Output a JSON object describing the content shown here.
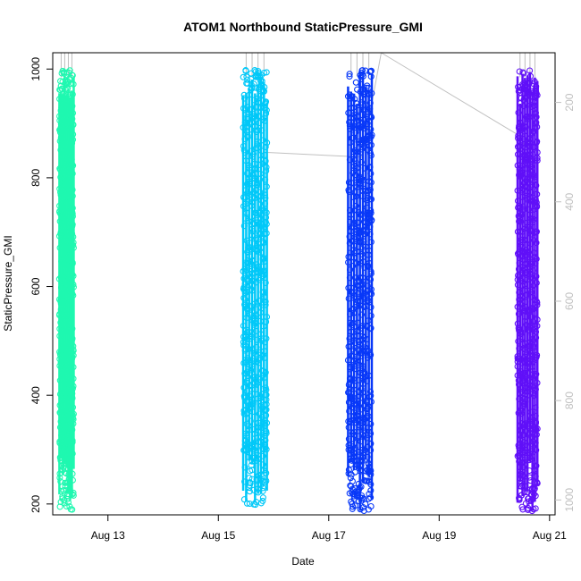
{
  "chart_data": {
    "type": "scatter",
    "title": "ATOM1 Northbound StaticPressure_GMI",
    "xlabel": "Date",
    "ylabel": "StaticPressure_GMI",
    "x_axis": {
      "ticks": [
        "Aug 13",
        "Aug 15",
        "Aug 17",
        "Aug 19",
        "Aug 21"
      ],
      "range_days": [
        12.0,
        21.1
      ]
    },
    "y_axis": {
      "ticks": [
        200,
        400,
        600,
        800,
        1000
      ],
      "range": [
        180,
        1030
      ]
    },
    "y2_axis": {
      "ticks": [
        200,
        400,
        600,
        800,
        1000
      ],
      "reversed": true,
      "range": [
        100,
        1030
      ],
      "color": "#c0c0c0"
    },
    "grid": false,
    "legend": "none",
    "colormap": "rainbow",
    "marker": "open-circle",
    "series": [
      {
        "x_start": 12.12,
        "x_end": 12.38,
        "y_min": 188,
        "y_max": 998,
        "color": "#1ff8b0"
      },
      {
        "x_start": 15.45,
        "x_end": 15.88,
        "y_min": 197,
        "y_max": 999,
        "color": "#00c8f8"
      },
      {
        "x_start": 17.35,
        "x_end": 17.78,
        "y_min": 187,
        "y_max": 1000,
        "color": "#0838f8"
      },
      {
        "x_start": 20.42,
        "x_end": 20.78,
        "y_min": 187,
        "y_max": 998,
        "color": "#6010f8"
      }
    ],
    "secondary_trace": {
      "color": "#c0c0c0",
      "x": [
        15.8,
        17.6,
        17.95,
        20.5,
        20.55
      ],
      "y": [
        300,
        310,
        100,
        270,
        290
      ]
    }
  }
}
